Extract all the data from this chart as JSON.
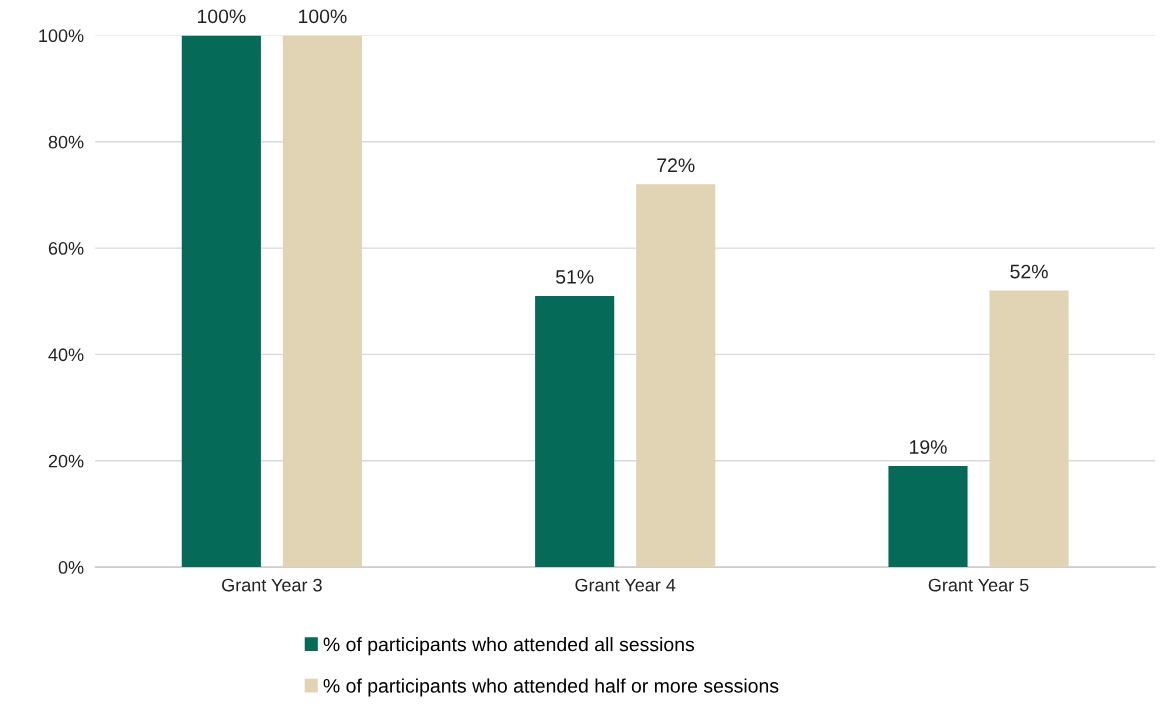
{
  "chart_data": {
    "type": "bar",
    "categories": [
      "Grant Year 3",
      "Grant Year 4",
      "Grant Year 5"
    ],
    "series": [
      {
        "name": "% of participants who attended all sessions",
        "color": "#066a58",
        "values": [
          100,
          51,
          19
        ],
        "value_labels": [
          "100%",
          "51%",
          "19%"
        ]
      },
      {
        "name": "% of participants who attended half or more sessions",
        "color": "#e0d4b4",
        "values": [
          100,
          72,
          52
        ],
        "value_labels": [
          "100%",
          "72%",
          "52%"
        ]
      }
    ],
    "ylim": [
      0,
      100
    ],
    "yticks": [
      {
        "value": 0,
        "label": "0%"
      },
      {
        "value": 20,
        "label": "20%"
      },
      {
        "value": 40,
        "label": "40%"
      },
      {
        "value": 60,
        "label": "60%"
      },
      {
        "value": 80,
        "label": "80%"
      },
      {
        "value": 100,
        "label": "100%"
      }
    ],
    "grid": "y",
    "legend": "bottom"
  }
}
